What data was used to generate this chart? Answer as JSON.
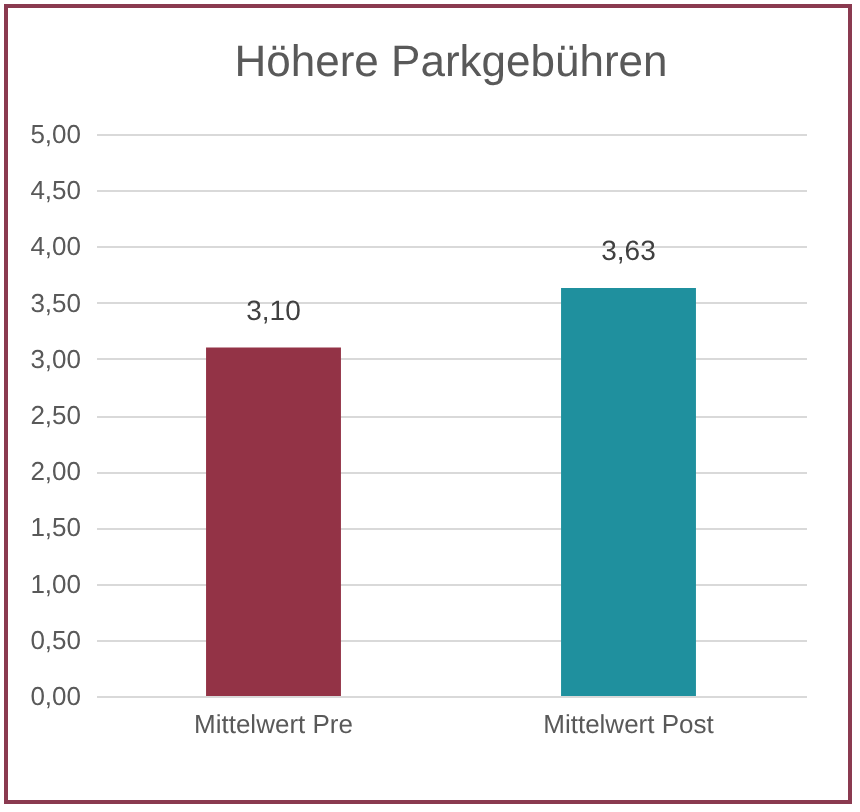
{
  "chart_data": {
    "type": "bar",
    "title": "Höhere Parkgebühren",
    "categories": [
      "Mittelwert Pre",
      "Mittelwert Post"
    ],
    "values": [
      3.1,
      3.63
    ],
    "colors": [
      "#933346",
      "#1f909e"
    ],
    "value_labels": [
      "3,10",
      "3,63"
    ],
    "ylim": [
      0,
      5
    ],
    "yticks": [
      {
        "value": 0,
        "label": "0,00"
      },
      {
        "value": 0.5,
        "label": "0,50"
      },
      {
        "value": 1,
        "label": "1,00"
      },
      {
        "value": 1.5,
        "label": "1,50"
      },
      {
        "value": 2,
        "label": "2,00"
      },
      {
        "value": 2.5,
        "label": "2,50"
      },
      {
        "value": 3,
        "label": "3,00"
      },
      {
        "value": 3.5,
        "label": "3,50"
      },
      {
        "value": 4,
        "label": "4,00"
      },
      {
        "value": 4.5,
        "label": "4,50"
      },
      {
        "value": 5,
        "label": "5,00"
      }
    ],
    "grid": "y"
  }
}
